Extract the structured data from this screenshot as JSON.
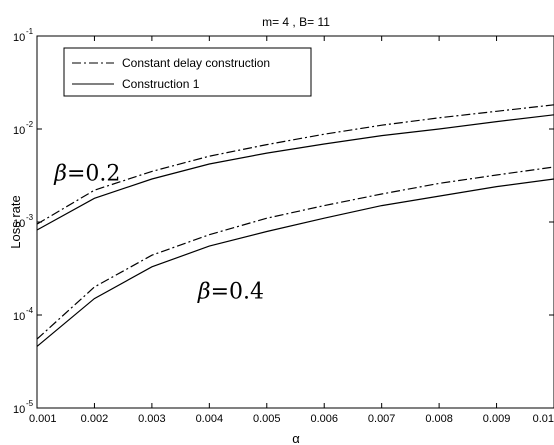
{
  "chart_data": {
    "type": "line",
    "title": "m= 4 ,  B= 11",
    "xlabel": "α",
    "ylabel": "Loss rate",
    "xlim": [
      0.001,
      0.01
    ],
    "ylim": [
      1e-05,
      0.1
    ],
    "yscale": "log",
    "grid": false,
    "legend_position": "top-left",
    "x_ticks": [
      "0.001",
      "0.002",
      "0.003",
      "0.004",
      "0.005",
      "0.006",
      "0.007",
      "0.008",
      "0.009",
      "0.01"
    ],
    "y_ticks": [
      {
        "base": "10",
        "exp": "-5",
        "value": 1e-05
      },
      {
        "base": "10",
        "exp": "-4",
        "value": 0.0001
      },
      {
        "base": "10",
        "exp": "-3",
        "value": 0.001
      },
      {
        "base": "10",
        "exp": "-2",
        "value": 0.01
      },
      {
        "base": "10",
        "exp": "-1",
        "value": 0.1
      }
    ],
    "x": [
      0.001,
      0.002,
      0.003,
      0.004,
      0.005,
      0.006,
      0.007,
      0.008,
      0.009,
      0.01
    ],
    "legend": [
      "Constant delay construction",
      "Construction 1"
    ],
    "series": [
      {
        "name": "Constant delay construction",
        "group": "β=0.2",
        "style": "dashdot",
        "values": [
          0.00095,
          0.0022,
          0.0035,
          0.0051,
          0.0068,
          0.0088,
          0.011,
          0.0132,
          0.0155,
          0.0182
        ]
      },
      {
        "name": "Construction 1",
        "group": "β=0.2",
        "style": "solid",
        "values": [
          0.00082,
          0.0018,
          0.0029,
          0.0042,
          0.0055,
          0.0069,
          0.0085,
          0.01,
          0.012,
          0.0142
        ]
      },
      {
        "name": "Constant delay construction",
        "group": "β=0.4",
        "style": "dashdot",
        "values": [
          5.5e-05,
          0.0002,
          0.00044,
          0.00073,
          0.0011,
          0.0015,
          0.002,
          0.0026,
          0.0032,
          0.0039
        ]
      },
      {
        "name": "Construction 1",
        "group": "β=0.4",
        "style": "solid",
        "values": [
          4.6e-05,
          0.00015,
          0.00033,
          0.00055,
          0.00079,
          0.0011,
          0.0015,
          0.0019,
          0.0024,
          0.0029
        ]
      }
    ],
    "annotations": [
      {
        "beta": "β",
        "text": "=0.2",
        "x": 0.0013,
        "y": 0.0028
      },
      {
        "beta": "β",
        "text": "=0.4",
        "x": 0.0038,
        "y": 0.00015
      }
    ]
  }
}
